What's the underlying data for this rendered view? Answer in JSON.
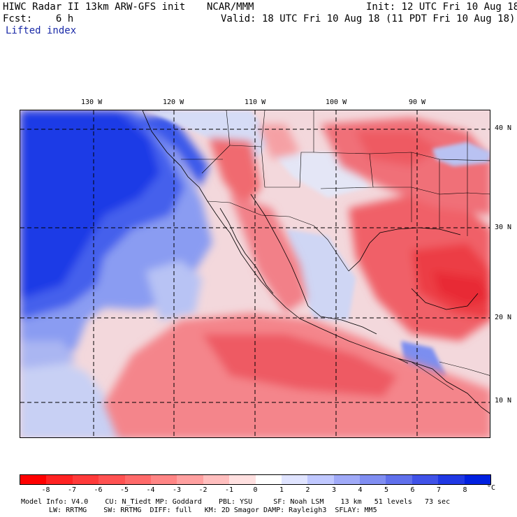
{
  "header": {
    "line1_left": "HIWC Radar II 13km ARW-GFS init",
    "line1_mid": "NCAR/MMM",
    "line1_right": "Init: 12 UTC Fri 10 Aug 18",
    "line2_left": "Fcst:    6 h",
    "line2_right": "Valid: 18 UTC Fri 10 Aug 18 (11 PDT Fri 10 Aug 18)",
    "field_name": "Lifted index"
  },
  "map": {
    "lon_labels": [
      "130 W",
      "120 W",
      "110 W",
      "100 W",
      "90 W"
    ],
    "lat_labels": [
      "40 N",
      "30 N",
      "20 N",
      "10 N"
    ],
    "colors": {
      "ocean_stable": "#1c3be6",
      "neutral": "#ffffff",
      "unstable": "#ff2020",
      "grid": "#000000"
    }
  },
  "legend": {
    "ticks": [
      "-8",
      "-7",
      "-6",
      "-5",
      "-4",
      "-3",
      "-2",
      "-1",
      "0",
      "1",
      "2",
      "3",
      "4",
      "5",
      "6",
      "7",
      "8"
    ],
    "unit": "°C",
    "colors": [
      "#ff0000",
      "#ff2222",
      "#ff3a3a",
      "#ff5252",
      "#ff6a6a",
      "#ff8585",
      "#ffa0a0",
      "#ffbebe",
      "#ffe0e0",
      "#ffffff",
      "#e0e4ff",
      "#c0c8ff",
      "#a0aaf8",
      "#808ef2",
      "#6070ec",
      "#4052e8",
      "#2038e4",
      "#0020e0"
    ]
  },
  "footer": {
    "line1": "Model Info: V4.0    CU: N_Tiedt MP: Goddard    PBL: YSU     SF: Noah LSM    13 km   51 levels   73 sec",
    "line2": "LW: RRTMG    SW: RRTMG  DIFF: full   KM: 2D Smagor DAMP: Rayleigh3  SFLAY: MM5"
  }
}
